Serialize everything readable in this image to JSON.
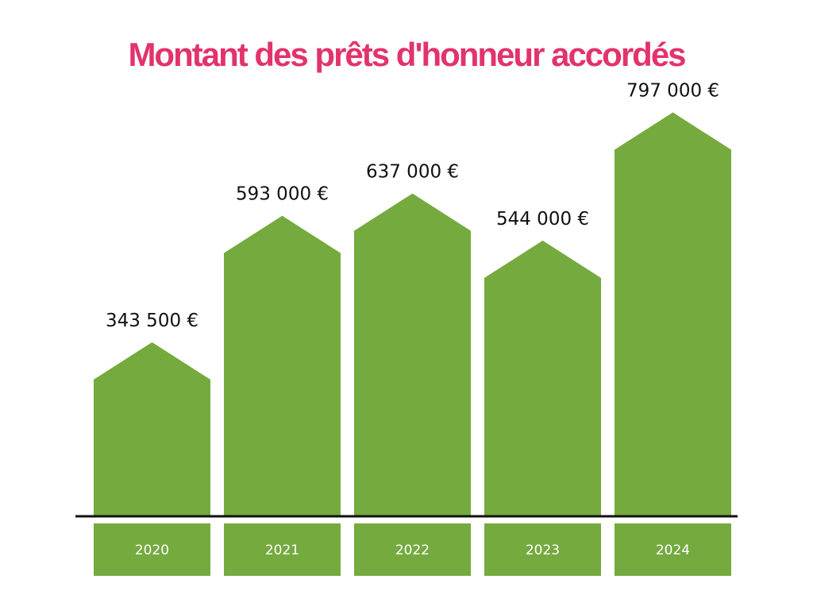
{
  "colors": {
    "title": "#e2336b",
    "bar": "#75aa3f",
    "axis": "#111111",
    "value_text": "#111111",
    "year_text": "#ffffff"
  },
  "chart_data": {
    "type": "bar",
    "title": "Montant des prêts d'honneur accordés",
    "xlabel": "",
    "ylabel": "",
    "categories": [
      "2020",
      "2021",
      "2022",
      "2023",
      "2024"
    ],
    "values": [
      343500,
      593000,
      637000,
      544000,
      797000
    ],
    "value_labels": [
      "343 500 €",
      "593 000 €",
      "637 000 €",
      "544 000 €",
      "797 000 €"
    ],
    "ylim": [
      0,
      800000
    ],
    "grid": false,
    "legend": "none"
  }
}
